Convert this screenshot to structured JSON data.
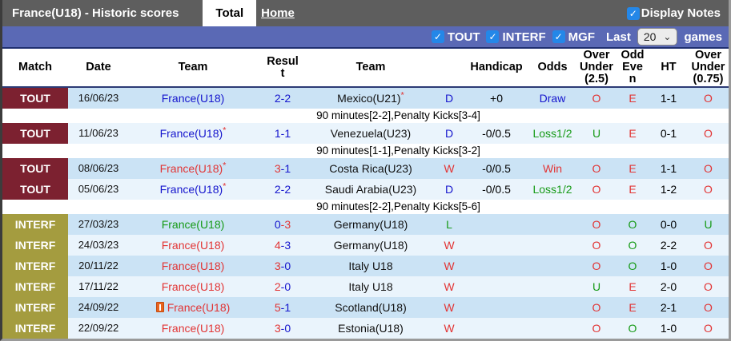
{
  "title_bar": {
    "title": "France(U18) - Historic scores",
    "tabs": [
      {
        "label": "Total",
        "active": true
      },
      {
        "label": "Home",
        "active": false
      }
    ],
    "display_notes": {
      "label": "Display Notes",
      "checked": true,
      "check_glyph": "✓"
    }
  },
  "filter_bar": {
    "checkboxes": [
      {
        "label": "TOUT",
        "checked": true
      },
      {
        "label": "INTERF",
        "checked": true
      },
      {
        "label": "MGF",
        "checked": true
      }
    ],
    "check_glyph": "✓",
    "last_label": "Last",
    "games_count": "20",
    "chevron": "⌄",
    "games_label": "games"
  },
  "table": {
    "headers": [
      "Match",
      "Date",
      "Team",
      "Result",
      "Team",
      "",
      "Handicap",
      "Odds",
      "Over Under (2.5)",
      "Odd Even",
      "HT",
      "Over Under (0.75)"
    ],
    "rows": [
      {
        "badge": "TOUT",
        "badge_type": "tout",
        "date": "16/06/23",
        "team1": {
          "text": "France(U18)",
          "color": "blue",
          "star": false,
          "card": false
        },
        "result": {
          "home": "2",
          "away": "2",
          "home_color": "blue",
          "away_color": "blue"
        },
        "team2": {
          "text": "Mexico(U21)",
          "star": true
        },
        "wdl": {
          "text": "D",
          "color": "blue"
        },
        "handicap": "+0",
        "odds": {
          "text": "Draw",
          "color": "blue"
        },
        "ou25": {
          "text": "O",
          "color": "red"
        },
        "oddeven": {
          "text": "E",
          "color": "red"
        },
        "ht": "1-1",
        "ou075": {
          "text": "O",
          "color": "red"
        },
        "note": "90 minutes[2-2],Penalty Kicks[3-4]"
      },
      {
        "badge": "TOUT",
        "badge_type": "tout",
        "date": "11/06/23",
        "team1": {
          "text": "France(U18)",
          "color": "blue",
          "star": true,
          "card": false
        },
        "result": {
          "home": "1",
          "away": "1",
          "home_color": "blue",
          "away_color": "blue"
        },
        "team2": {
          "text": "Venezuela(U23)",
          "star": false
        },
        "wdl": {
          "text": "D",
          "color": "blue"
        },
        "handicap": "-0/0.5",
        "odds": {
          "text": "Loss1/2",
          "color": "green"
        },
        "ou25": {
          "text": "U",
          "color": "green"
        },
        "oddeven": {
          "text": "E",
          "color": "red"
        },
        "ht": "0-1",
        "ou075": {
          "text": "O",
          "color": "red"
        },
        "note": "90 minutes[1-1],Penalty Kicks[3-2]"
      },
      {
        "badge": "TOUT",
        "badge_type": "tout",
        "date": "08/06/23",
        "team1": {
          "text": "France(U18)",
          "color": "red",
          "star": true,
          "card": false
        },
        "result": {
          "home": "3",
          "away": "1",
          "home_color": "red",
          "away_color": "blue"
        },
        "team2": {
          "text": "Costa Rica(U23)",
          "star": false
        },
        "wdl": {
          "text": "W",
          "color": "red"
        },
        "handicap": "-0/0.5",
        "odds": {
          "text": "Win",
          "color": "red"
        },
        "ou25": {
          "text": "O",
          "color": "red"
        },
        "oddeven": {
          "text": "E",
          "color": "red"
        },
        "ht": "1-1",
        "ou075": {
          "text": "O",
          "color": "red"
        },
        "note": null
      },
      {
        "badge": "TOUT",
        "badge_type": "tout",
        "date": "05/06/23",
        "team1": {
          "text": "France(U18)",
          "color": "blue",
          "star": true,
          "card": false
        },
        "result": {
          "home": "2",
          "away": "2",
          "home_color": "blue",
          "away_color": "blue"
        },
        "team2": {
          "text": "Saudi Arabia(U23)",
          "star": false
        },
        "wdl": {
          "text": "D",
          "color": "blue"
        },
        "handicap": "-0/0.5",
        "odds": {
          "text": "Loss1/2",
          "color": "green"
        },
        "ou25": {
          "text": "O",
          "color": "red"
        },
        "oddeven": {
          "text": "E",
          "color": "red"
        },
        "ht": "1-2",
        "ou075": {
          "text": "O",
          "color": "red"
        },
        "note": "90 minutes[2-2],Penalty Kicks[5-6]"
      },
      {
        "badge": "INTERF",
        "badge_type": "interf",
        "date": "27/03/23",
        "team1": {
          "text": "France(U18)",
          "color": "green",
          "star": false,
          "card": false
        },
        "result": {
          "home": "0",
          "away": "3",
          "home_color": "blue",
          "away_color": "red"
        },
        "team2": {
          "text": "Germany(U18)",
          "star": false
        },
        "wdl": {
          "text": "L",
          "color": "green"
        },
        "handicap": "",
        "odds": {
          "text": "",
          "color": "black"
        },
        "ou25": {
          "text": "O",
          "color": "red"
        },
        "oddeven": {
          "text": "O",
          "color": "green"
        },
        "ht": "0-0",
        "ou075": {
          "text": "U",
          "color": "green"
        },
        "note": null
      },
      {
        "badge": "INTERF",
        "badge_type": "interf",
        "date": "24/03/23",
        "team1": {
          "text": "France(U18)",
          "color": "red",
          "star": false,
          "card": false
        },
        "result": {
          "home": "4",
          "away": "3",
          "home_color": "red",
          "away_color": "blue"
        },
        "team2": {
          "text": "Germany(U18)",
          "star": false
        },
        "wdl": {
          "text": "W",
          "color": "red"
        },
        "handicap": "",
        "odds": {
          "text": "",
          "color": "black"
        },
        "ou25": {
          "text": "O",
          "color": "red"
        },
        "oddeven": {
          "text": "O",
          "color": "green"
        },
        "ht": "2-2",
        "ou075": {
          "text": "O",
          "color": "red"
        },
        "note": null
      },
      {
        "badge": "INTERF",
        "badge_type": "interf",
        "date": "20/11/22",
        "team1": {
          "text": "France(U18)",
          "color": "red",
          "star": false,
          "card": false
        },
        "result": {
          "home": "3",
          "away": "0",
          "home_color": "red",
          "away_color": "blue"
        },
        "team2": {
          "text": "Italy U18",
          "star": false
        },
        "wdl": {
          "text": "W",
          "color": "red"
        },
        "handicap": "",
        "odds": {
          "text": "",
          "color": "black"
        },
        "ou25": {
          "text": "O",
          "color": "red"
        },
        "oddeven": {
          "text": "O",
          "color": "green"
        },
        "ht": "1-0",
        "ou075": {
          "text": "O",
          "color": "red"
        },
        "note": null
      },
      {
        "badge": "INTERF",
        "badge_type": "interf",
        "date": "17/11/22",
        "team1": {
          "text": "France(U18)",
          "color": "red",
          "star": false,
          "card": false
        },
        "result": {
          "home": "2",
          "away": "0",
          "home_color": "red",
          "away_color": "blue"
        },
        "team2": {
          "text": "Italy U18",
          "star": false
        },
        "wdl": {
          "text": "W",
          "color": "red"
        },
        "handicap": "",
        "odds": {
          "text": "",
          "color": "black"
        },
        "ou25": {
          "text": "U",
          "color": "green"
        },
        "oddeven": {
          "text": "E",
          "color": "red"
        },
        "ht": "2-0",
        "ou075": {
          "text": "O",
          "color": "red"
        },
        "note": null
      },
      {
        "badge": "INTERF",
        "badge_type": "interf",
        "date": "24/09/22",
        "team1": {
          "text": "France(U18)",
          "color": "red",
          "star": false,
          "card": true
        },
        "result": {
          "home": "5",
          "away": "1",
          "home_color": "red",
          "away_color": "blue"
        },
        "team2": {
          "text": "Scotland(U18)",
          "star": false
        },
        "wdl": {
          "text": "W",
          "color": "red"
        },
        "handicap": "",
        "odds": {
          "text": "",
          "color": "black"
        },
        "ou25": {
          "text": "O",
          "color": "red"
        },
        "oddeven": {
          "text": "E",
          "color": "red"
        },
        "ht": "2-1",
        "ou075": {
          "text": "O",
          "color": "red"
        },
        "note": null
      },
      {
        "badge": "INTERF",
        "badge_type": "interf",
        "date": "22/09/22",
        "team1": {
          "text": "France(U18)",
          "color": "red",
          "star": false,
          "card": false
        },
        "result": {
          "home": "3",
          "away": "0",
          "home_color": "red",
          "away_color": "blue"
        },
        "team2": {
          "text": "Estonia(U18)",
          "star": false
        },
        "wdl": {
          "text": "W",
          "color": "red"
        },
        "handicap": "",
        "odds": {
          "text": "",
          "color": "black"
        },
        "ou25": {
          "text": "O",
          "color": "red"
        },
        "oddeven": {
          "text": "O",
          "color": "green"
        },
        "ht": "1-0",
        "ou075": {
          "text": "O",
          "color": "red"
        },
        "note": null
      }
    ]
  },
  "colors": {
    "blue": "#1515cd",
    "red": "#e23434",
    "green": "#169a16",
    "black": "#111111",
    "tout_badge": "#7c2130",
    "interf_badge": "#a49c3f",
    "filter_bar": "#5a69b5",
    "checkbox_blue": "#2487e8",
    "row_light": "#cbe3f5",
    "row_lighter": "#eaf4fc"
  }
}
